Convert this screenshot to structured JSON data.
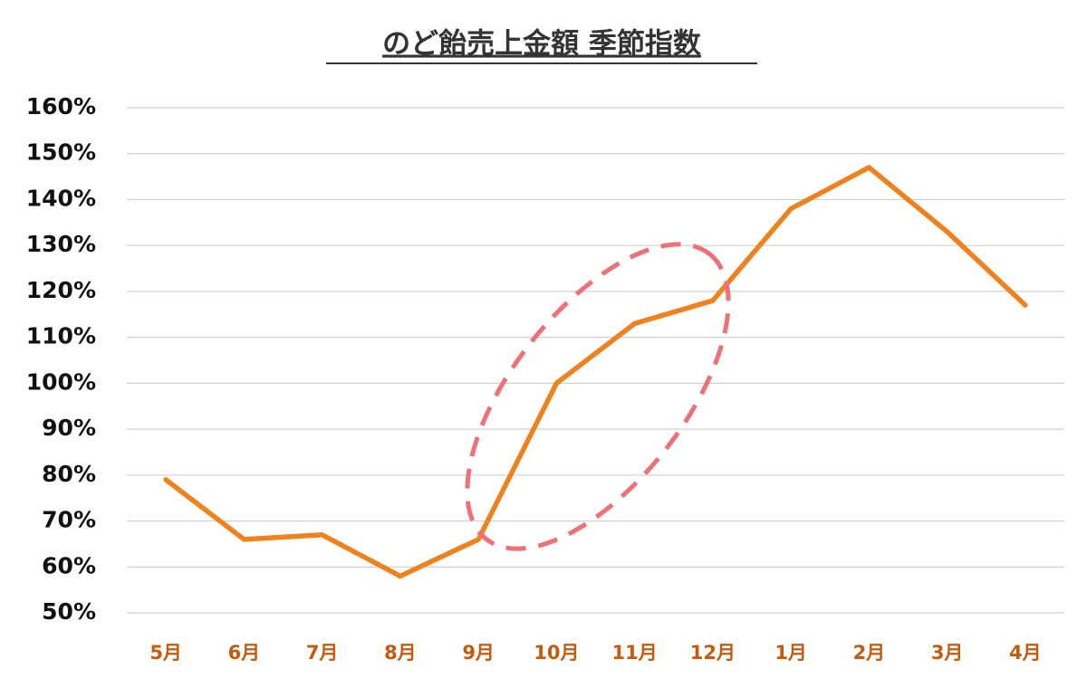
{
  "chart_data": {
    "type": "line",
    "title": "のど飴売上金額 季節指数",
    "categories": [
      "5月",
      "6月",
      "7月",
      "8月",
      "9月",
      "10月",
      "11月",
      "12月",
      "1月",
      "2月",
      "3月",
      "4月"
    ],
    "series": [
      {
        "name": "季節指数",
        "color": "#f0821e",
        "values": [
          79,
          66,
          67,
          58,
          66,
          100,
          113,
          118,
          138,
          147,
          133,
          117
        ]
      }
    ],
    "ylim": [
      50,
      160
    ],
    "yticks": [
      {
        "value": 50,
        "label": "50%"
      },
      {
        "value": 60,
        "label": "60%"
      },
      {
        "value": 70,
        "label": "70%"
      },
      {
        "value": 80,
        "label": "80%"
      },
      {
        "value": 90,
        "label": "90%"
      },
      {
        "value": 100,
        "label": "100%"
      },
      {
        "value": 110,
        "label": "110%"
      },
      {
        "value": 120,
        "label": "120%"
      },
      {
        "value": 130,
        "label": "130%"
      },
      {
        "value": 140,
        "label": "140%"
      },
      {
        "value": 150,
        "label": "150%"
      },
      {
        "value": 160,
        "label": "160%"
      }
    ],
    "grid": true
  }
}
